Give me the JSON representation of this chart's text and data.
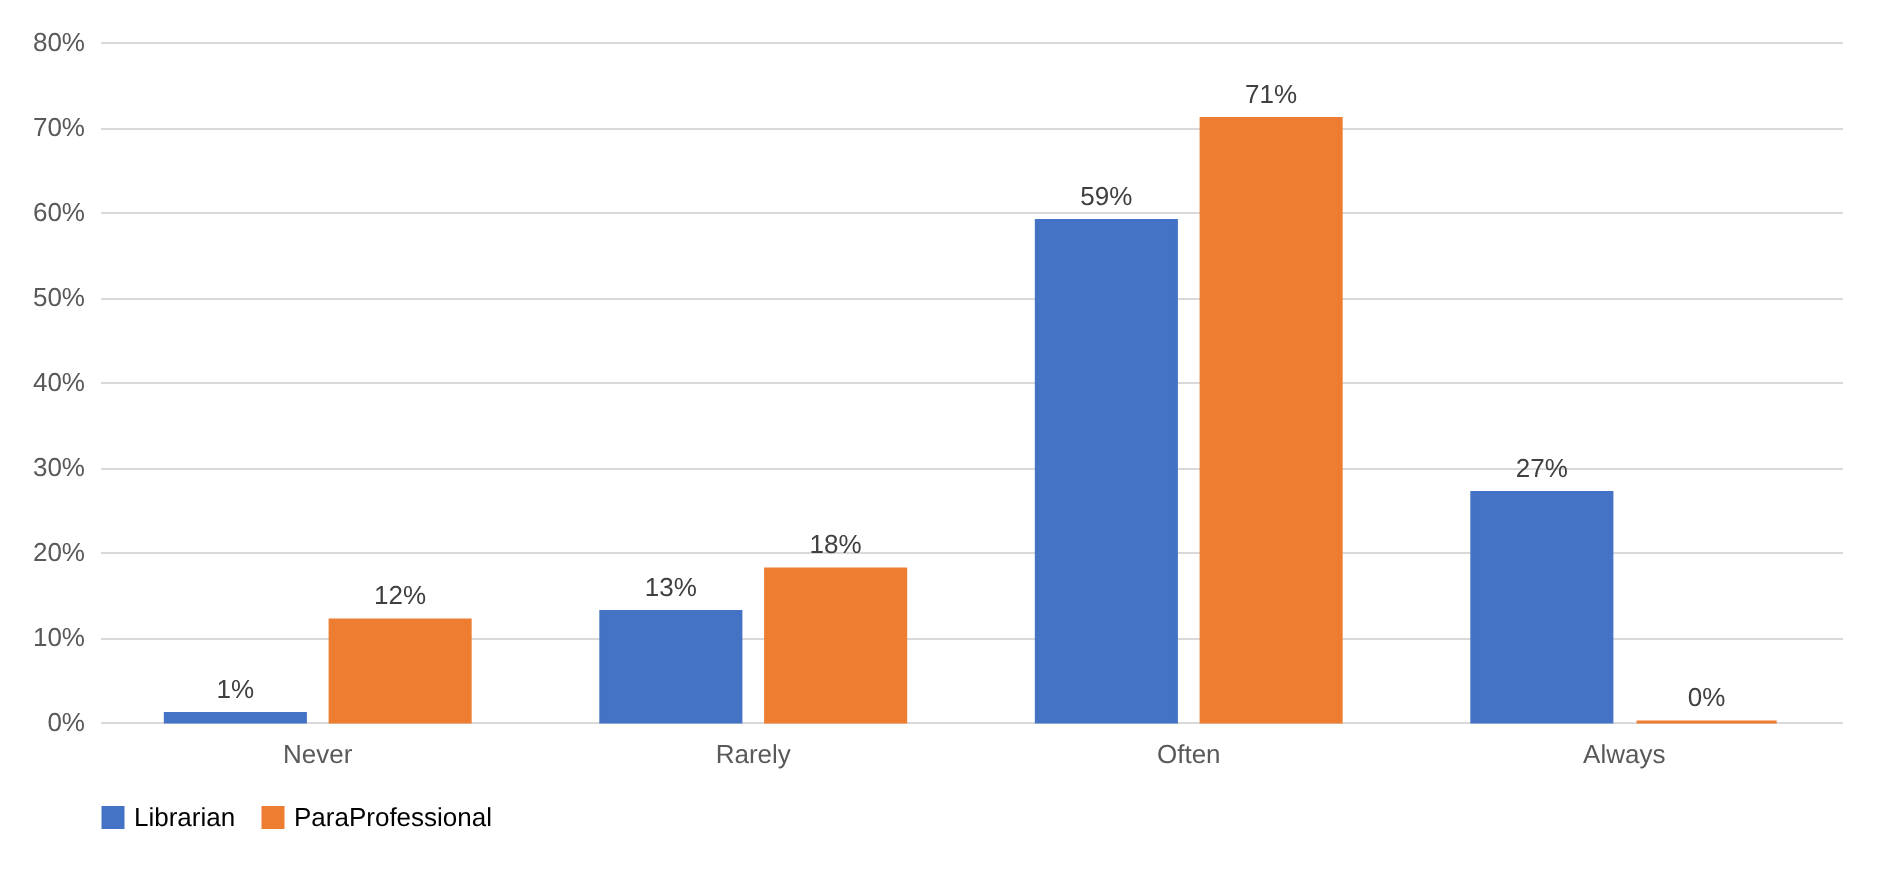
{
  "chart_data": {
    "type": "bar",
    "categories": [
      "Never",
      "Rarely",
      "Often",
      "Always"
    ],
    "series": [
      {
        "name": "Librarian",
        "color": "#4472c4",
        "values": [
          1,
          13,
          59,
          27
        ],
        "value_labels": [
          "1%",
          "13%",
          "59%",
          "27%"
        ]
      },
      {
        "name": "ParaProfessional",
        "color": "#ed7d31",
        "values": [
          12,
          18,
          71,
          0
        ],
        "value_labels": [
          "12%",
          "18%",
          "71%",
          "0%"
        ]
      }
    ],
    "ylim": [
      0,
      80
    ],
    "yticks": [
      {
        "value": 0,
        "label": "0%"
      },
      {
        "value": 10,
        "label": "10%"
      },
      {
        "value": 20,
        "label": "20%"
      },
      {
        "value": 30,
        "label": "30%"
      },
      {
        "value": 40,
        "label": "40%"
      },
      {
        "value": 50,
        "label": "50%"
      },
      {
        "value": 60,
        "label": "60%"
      },
      {
        "value": 70,
        "label": "70%"
      },
      {
        "value": 80,
        "label": "80%"
      }
    ],
    "grid": "y",
    "legend": "bottom"
  }
}
